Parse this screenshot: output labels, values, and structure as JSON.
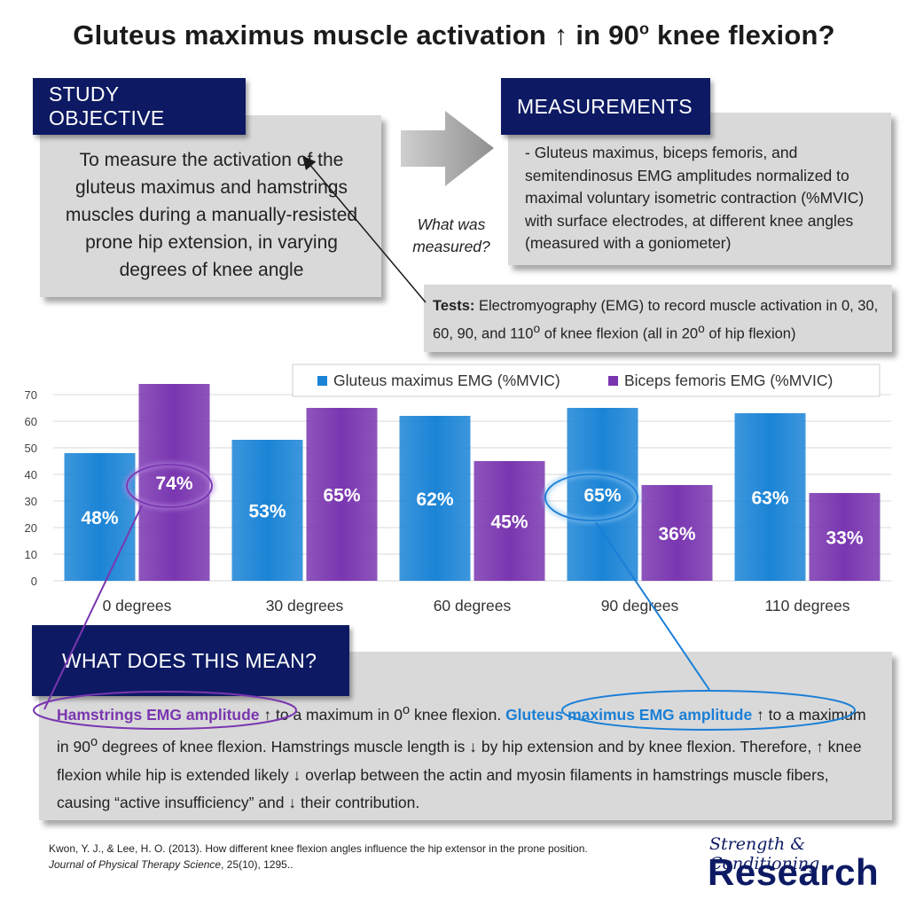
{
  "title": {
    "main": "Gluteus maximus muscle activation ↑ in 90",
    "sup": "o",
    "end": " knee flexion?"
  },
  "objective": {
    "label": "STUDY OBJECTIVE",
    "text": "To measure the activation of the gluteus maximus and hamstrings muscles during a manually-resisted prone hip extension, in varying degrees of knee angle"
  },
  "arrow_caption": "What was measured?",
  "measurements": {
    "label": "MEASUREMENTS",
    "text": "- Gluteus maximus, biceps femoris, and semitendinosus EMG amplitudes normalized to maximal voluntary isometric contraction (%MVIC) with surface electrodes, at different knee angles (measured with a goniometer)"
  },
  "tests": {
    "label": "Tests:",
    "text_a": " Electromyography (EMG) to record muscle activation in 0, 30, 60, 90, and 110",
    "sup1": "o",
    "text_b": " of knee flexion (all in 20",
    "sup2": "o",
    "text_c": " of hip flexion)"
  },
  "chart_data": {
    "type": "bar",
    "categories": [
      "0 degrees",
      "30 degrees",
      "60 degrees",
      "90 degrees",
      "110 degrees"
    ],
    "series": [
      {
        "name": "Gluteus maximus EMG (%MVIC)",
        "values": [
          48,
          53,
          62,
          65,
          63
        ],
        "labels": [
          "48%",
          "53%",
          "62%",
          "65%",
          "63%"
        ],
        "color": "#1b84d6"
      },
      {
        "name": "Biceps femoris EMG (%MVIC)",
        "values": [
          74,
          65,
          45,
          36,
          33
        ],
        "labels": [
          "74%",
          "65%",
          "45%",
          "36%",
          "33%"
        ],
        "color": "#7a36b0"
      }
    ],
    "yticks": [
      0,
      10,
      20,
      30,
      40,
      50,
      60,
      70
    ],
    "ylim": [
      0,
      75
    ],
    "grid": true,
    "legend": "top-right"
  },
  "meaning": {
    "label": "WHAT DOES THIS MEAN?",
    "hs_bold": "Hamstrings EMG amplitude",
    "t1": " ↑ to a maximum in 0",
    "sup1": "o",
    "t2": " knee flexion. ",
    "gm_bold": "Gluteus maximus EMG amplitude",
    "t3": " ↑ to a maximum in 90",
    "sup2": "o",
    "t4": " degrees of knee flexion. Hamstrings muscle length is ↓ by hip extension and by knee flexion. Therefore, ↑ knee flexion while hip is extended likely ↓ overlap between the actin and myosin filaments in hamstrings muscle fibers, causing “active insufficiency” and ↓ their contribution."
  },
  "citation": {
    "line1": "Kwon, Y. J., & Lee, H. O. (2013). How different knee flexion angles influence the hip extensor in the prone position.",
    "journal": "Journal of Physical Therapy Science",
    "rest": ", 25(10), 1295.."
  },
  "logo": {
    "top": "Strength & Conditioning",
    "bottom": "Research"
  },
  "colors": {
    "navy": "#0d1a63",
    "gray_box": "#d9d9d9",
    "blue": "#1b84d6",
    "purple": "#7a36b0"
  }
}
